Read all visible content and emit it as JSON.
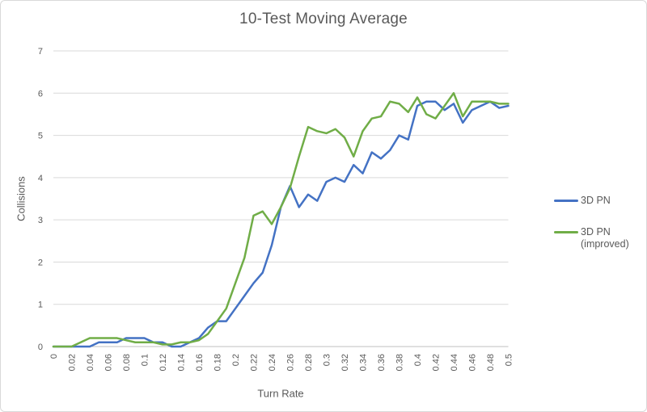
{
  "colors": {
    "background": "#FFFFFF",
    "frame_border": "#D9D9D9",
    "gridline": "#D9D9D9",
    "axis_line": "#BFBFBF",
    "text": "#595959",
    "series_blue": "#4472C4",
    "series_green": "#70AD47"
  },
  "chart_data": {
    "type": "line",
    "title": "10-Test Moving Average",
    "xlabel": "Turn Rate",
    "ylabel": "Collisions",
    "xlim": [
      0,
      0.5
    ],
    "ylim": [
      0,
      7
    ],
    "y_ticks": [
      0,
      1,
      2,
      3,
      4,
      5,
      6,
      7
    ],
    "x_tick_labels": [
      "0",
      "0.02",
      "0.04",
      "0.06",
      "0.08",
      "0.1",
      "0.12",
      "0.14",
      "0.16",
      "0.18",
      "0.2",
      "0.22",
      "0.24",
      "0.26",
      "0.28",
      "0.3",
      "0.32",
      "0.34",
      "0.36",
      "0.38",
      "0.4",
      "0.42",
      "0.44",
      "0.46",
      "0.48",
      "0.5"
    ],
    "grid": "horizontal-only",
    "legend_position": "right",
    "x": [
      0,
      0.01,
      0.02,
      0.03,
      0.04,
      0.05,
      0.06,
      0.07,
      0.08,
      0.09,
      0.1,
      0.11,
      0.12,
      0.13,
      0.14,
      0.15,
      0.16,
      0.17,
      0.18,
      0.19,
      0.2,
      0.21,
      0.22,
      0.23,
      0.24,
      0.25,
      0.26,
      0.27,
      0.28,
      0.29,
      0.3,
      0.31,
      0.32,
      0.33,
      0.34,
      0.35,
      0.36,
      0.37,
      0.38,
      0.39,
      0.4,
      0.41,
      0.42,
      0.43,
      0.44,
      0.45,
      0.46,
      0.47,
      0.48,
      0.49,
      0.5
    ],
    "series": [
      {
        "name": "3D PN",
        "color": "#4472C4",
        "values": [
          0,
          0,
          0,
          0,
          0,
          0.1,
          0.1,
          0.1,
          0.2,
          0.2,
          0.2,
          0.1,
          0.1,
          0,
          0,
          0.1,
          0.2,
          0.45,
          0.6,
          0.6,
          0.9,
          1.2,
          1.5,
          1.75,
          2.4,
          3.3,
          3.8,
          3.3,
          3.6,
          3.45,
          3.9,
          4,
          3.9,
          4.3,
          4.1,
          4.6,
          4.45,
          4.65,
          5,
          4.9,
          5.7,
          5.8,
          5.8,
          5.6,
          5.75,
          5.3,
          5.6,
          5.7,
          5.8,
          5.65,
          5.7
        ]
      },
      {
        "name": "3D PN (improved)",
        "color": "#70AD47",
        "values": [
          0,
          0,
          0,
          0.1,
          0.2,
          0.2,
          0.2,
          0.2,
          0.15,
          0.1,
          0.1,
          0.1,
          0.05,
          0.05,
          0.1,
          0.1,
          0.15,
          0.3,
          0.6,
          0.9,
          1.5,
          2.1,
          3.1,
          3.2,
          2.9,
          3.3,
          3.75,
          4.5,
          5.2,
          5.1,
          5.05,
          5.15,
          4.95,
          4.5,
          5.1,
          5.4,
          5.45,
          5.8,
          5.75,
          5.55,
          5.9,
          5.5,
          5.4,
          5.7,
          6,
          5.45,
          5.8,
          5.8,
          5.8,
          5.75,
          5.75
        ]
      }
    ]
  }
}
